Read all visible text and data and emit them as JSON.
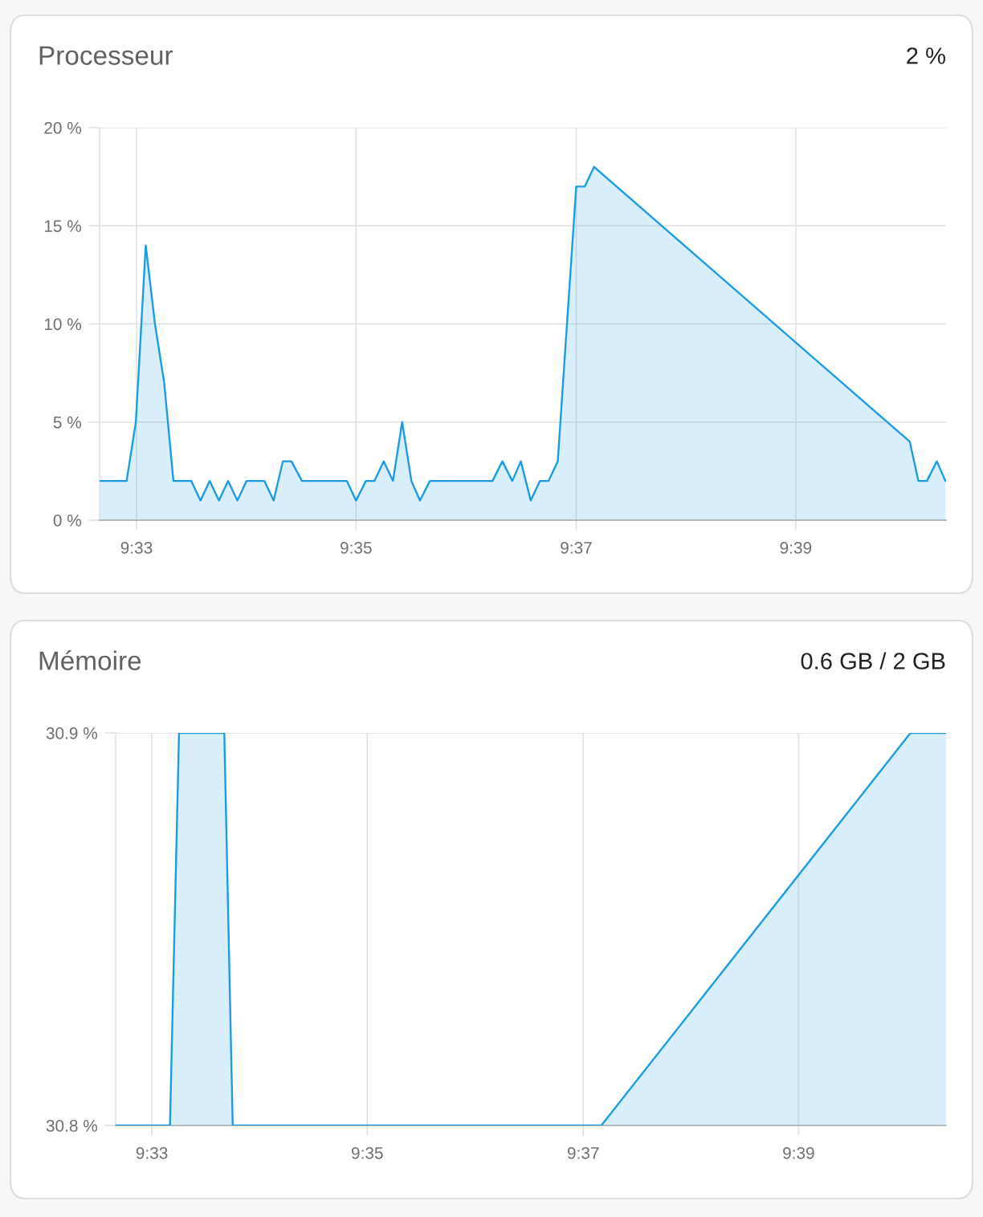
{
  "chart_data": [
    {
      "type": "area",
      "title": "Processeur",
      "subtitle": "2 %",
      "x": [
        9.5444,
        9.5485,
        9.5499,
        9.5514,
        9.5528,
        9.5542,
        9.5556,
        9.5583,
        9.5597,
        9.5611,
        9.5625,
        9.5639,
        9.5653,
        9.5667,
        9.5694,
        9.5708,
        9.5722,
        9.5735,
        9.5751,
        9.5819,
        9.5833,
        9.5848,
        9.5861,
        9.5875,
        9.5889,
        9.5903,
        9.5917,
        9.593,
        9.5945,
        9.604,
        9.6055,
        9.607,
        9.6083,
        9.6098,
        9.6112,
        9.6125,
        9.6139,
        9.6167,
        9.618,
        9.6194,
        9.6673,
        9.6686,
        9.6699,
        9.6714,
        9.6727
      ],
      "values": [
        2,
        2,
        5,
        14,
        10,
        7,
        2,
        2,
        1,
        2,
        1,
        2,
        1,
        2,
        2,
        1,
        3,
        3,
        2,
        2,
        1,
        2,
        2,
        3,
        2,
        5,
        2,
        1,
        2,
        2,
        3,
        2,
        3,
        1,
        2,
        2,
        3,
        17,
        17,
        18,
        4,
        2,
        2,
        3,
        2
      ],
      "color": "#1a9be6",
      "xlim": [
        9.5444,
        9.6728
      ],
      "ylim": [
        0,
        20
      ],
      "xticks": [
        {
          "value": 9.55,
          "label": "9:33"
        },
        {
          "value": 9.5833,
          "label": "9:35"
        },
        {
          "value": 9.6167,
          "label": "9:37"
        },
        {
          "value": 9.65,
          "label": "9:39"
        }
      ],
      "yticks": [
        {
          "value": 0,
          "label": "0 %"
        },
        {
          "value": 5,
          "label": "5 %"
        },
        {
          "value": 10,
          "label": "10 %"
        },
        {
          "value": 15,
          "label": "15 %"
        },
        {
          "value": 20,
          "label": "20 %"
        }
      ],
      "grid": true
    },
    {
      "type": "area",
      "title": "Mémoire",
      "subtitle": "0.6 GB / 2 GB",
      "x": [
        9.5444,
        9.5528,
        9.5542,
        9.5612,
        9.5625,
        9.6195,
        9.6673,
        9.6728
      ],
      "values": [
        30.8,
        30.8,
        30.9,
        30.9,
        30.8,
        30.8,
        30.9,
        30.9
      ],
      "color": "#1a9be6",
      "xlim": [
        9.5444,
        9.6728
      ],
      "ylim": [
        30.8,
        30.9
      ],
      "xticks": [
        {
          "value": 9.55,
          "label": "9:33"
        },
        {
          "value": 9.5833,
          "label": "9:35"
        },
        {
          "value": 9.6167,
          "label": "9:37"
        },
        {
          "value": 9.65,
          "label": "9:39"
        }
      ],
      "yticks": [
        {
          "value": 30.8,
          "label": "30.8 %"
        },
        {
          "value": 30.9,
          "label": "30.9 %"
        }
      ],
      "grid": true
    }
  ]
}
